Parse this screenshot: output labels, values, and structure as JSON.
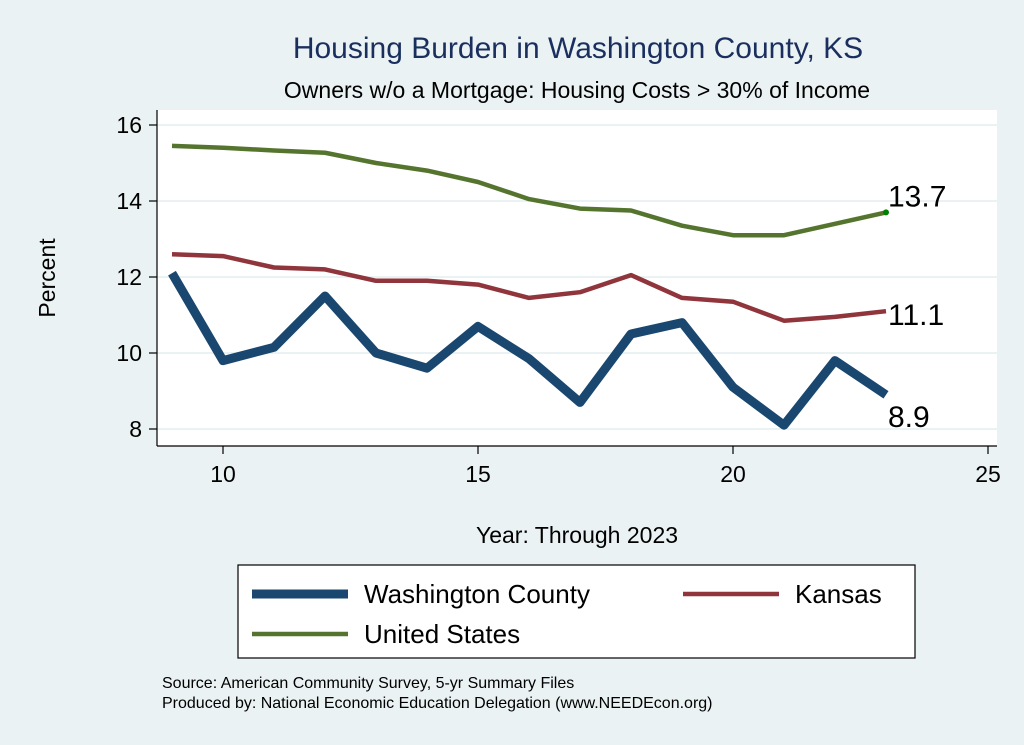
{
  "chart_data": {
    "type": "line",
    "title": "Housing Burden in Washington County, KS",
    "subtitle": "Owners w/o a Mortgage: Housing Costs > 30% of Income",
    "xlabel": "Year: Through 2023",
    "ylabel": "Percent",
    "xlim": [
      8.7,
      25.3
    ],
    "ylim": [
      7.6,
      16.4
    ],
    "xticks": [
      10,
      15,
      20,
      25
    ],
    "yticks": [
      8,
      10,
      12,
      14,
      16
    ],
    "grid": true,
    "legend_placement": "bottom",
    "x": [
      9,
      10,
      11,
      12,
      13,
      14,
      15,
      16,
      17,
      18,
      19,
      20,
      21,
      22,
      23
    ],
    "series": [
      {
        "name": "Washington County",
        "color": "#1a476f",
        "end_label": "8.9",
        "values": [
          12.1,
          9.8,
          10.15,
          11.5,
          10.0,
          9.6,
          10.7,
          9.85,
          8.7,
          10.5,
          10.8,
          9.1,
          8.1,
          9.8,
          8.9
        ]
      },
      {
        "name": "Kansas",
        "color": "#90353b",
        "end_label": "11.1",
        "values": [
          12.6,
          12.55,
          12.25,
          12.2,
          11.9,
          11.9,
          11.8,
          11.45,
          11.6,
          12.05,
          11.45,
          11.35,
          10.85,
          10.95,
          11.1
        ]
      },
      {
        "name": "United States",
        "color": "#55752f",
        "end_label": "13.7",
        "values": [
          15.45,
          15.4,
          15.33,
          15.27,
          15.0,
          14.8,
          14.5,
          14.05,
          13.8,
          13.75,
          13.35,
          13.1,
          13.1,
          13.4,
          13.7
        ]
      }
    ],
    "notes": [
      "Source: American Community Survey, 5-yr Summary Files",
      "Produced by: National Economic Education Delegation (www.NEEDEcon.org)"
    ]
  }
}
